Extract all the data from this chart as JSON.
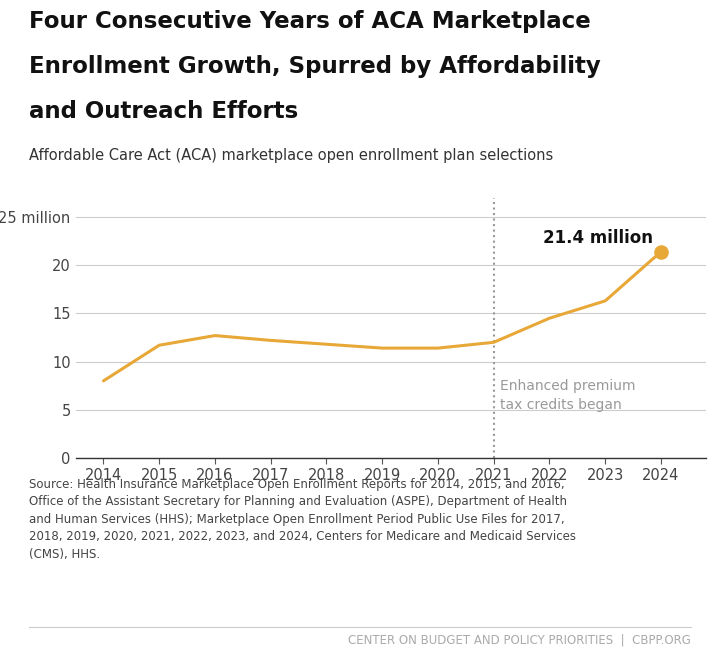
{
  "years": [
    2014,
    2015,
    2016,
    2017,
    2018,
    2019,
    2020,
    2021,
    2022,
    2023,
    2024
  ],
  "values": [
    8.0,
    11.7,
    12.7,
    12.2,
    11.8,
    11.4,
    11.4,
    12.0,
    14.5,
    16.3,
    21.4
  ],
  "line_color": "#E8A838",
  "dot_color": "#E8A838",
  "title_line1": "Four Consecutive Years of ACA Marketplace",
  "title_line2": "Enrollment Growth, Spurred by Affordability",
  "title_line3": "and Outreach Efforts",
  "subtitle": "Affordable Care Act (ACA) marketplace open enrollment plan selections",
  "vline_year": 2021,
  "vline_label_line1": "Enhanced premium",
  "vline_label_line2": "tax credits began",
  "annotation_label": "21.4 million",
  "annotation_year": 2024,
  "annotation_value": 21.4,
  "yticks": [
    0,
    5,
    10,
    15,
    20,
    25
  ],
  "ytick_labels": [
    "0",
    "5",
    "10",
    "15",
    "20",
    "25 million"
  ],
  "ylim": [
    0,
    27
  ],
  "xlim": [
    2013.5,
    2024.8
  ],
  "source_text": "Source: Health Insurance Marketplace Open Enrollment Reports for 2014, 2015, and 2016,\nOffice of the Assistant Secretary for Planning and Evaluation (ASPE), Department of Health\nand Human Services (HHS); Marketplace Open Enrollment Period Public Use Files for 2017,\n2018, 2019, 2020, 2021, 2022, 2023, and 2024, Centers for Medicare and Medicaid Services\n(CMS), HHS.",
  "footer_text": "CENTER ON BUDGET AND POLICY PRIORITIES  |  CBPP.ORG",
  "background_color": "#ffffff",
  "grid_color": "#cccccc",
  "title_fontsize": 16.5,
  "subtitle_fontsize": 10.5,
  "tick_fontsize": 10.5,
  "source_fontsize": 8.5,
  "footer_fontsize": 8.5,
  "vline_label_color": "#999999",
  "vline_color": "#999999"
}
